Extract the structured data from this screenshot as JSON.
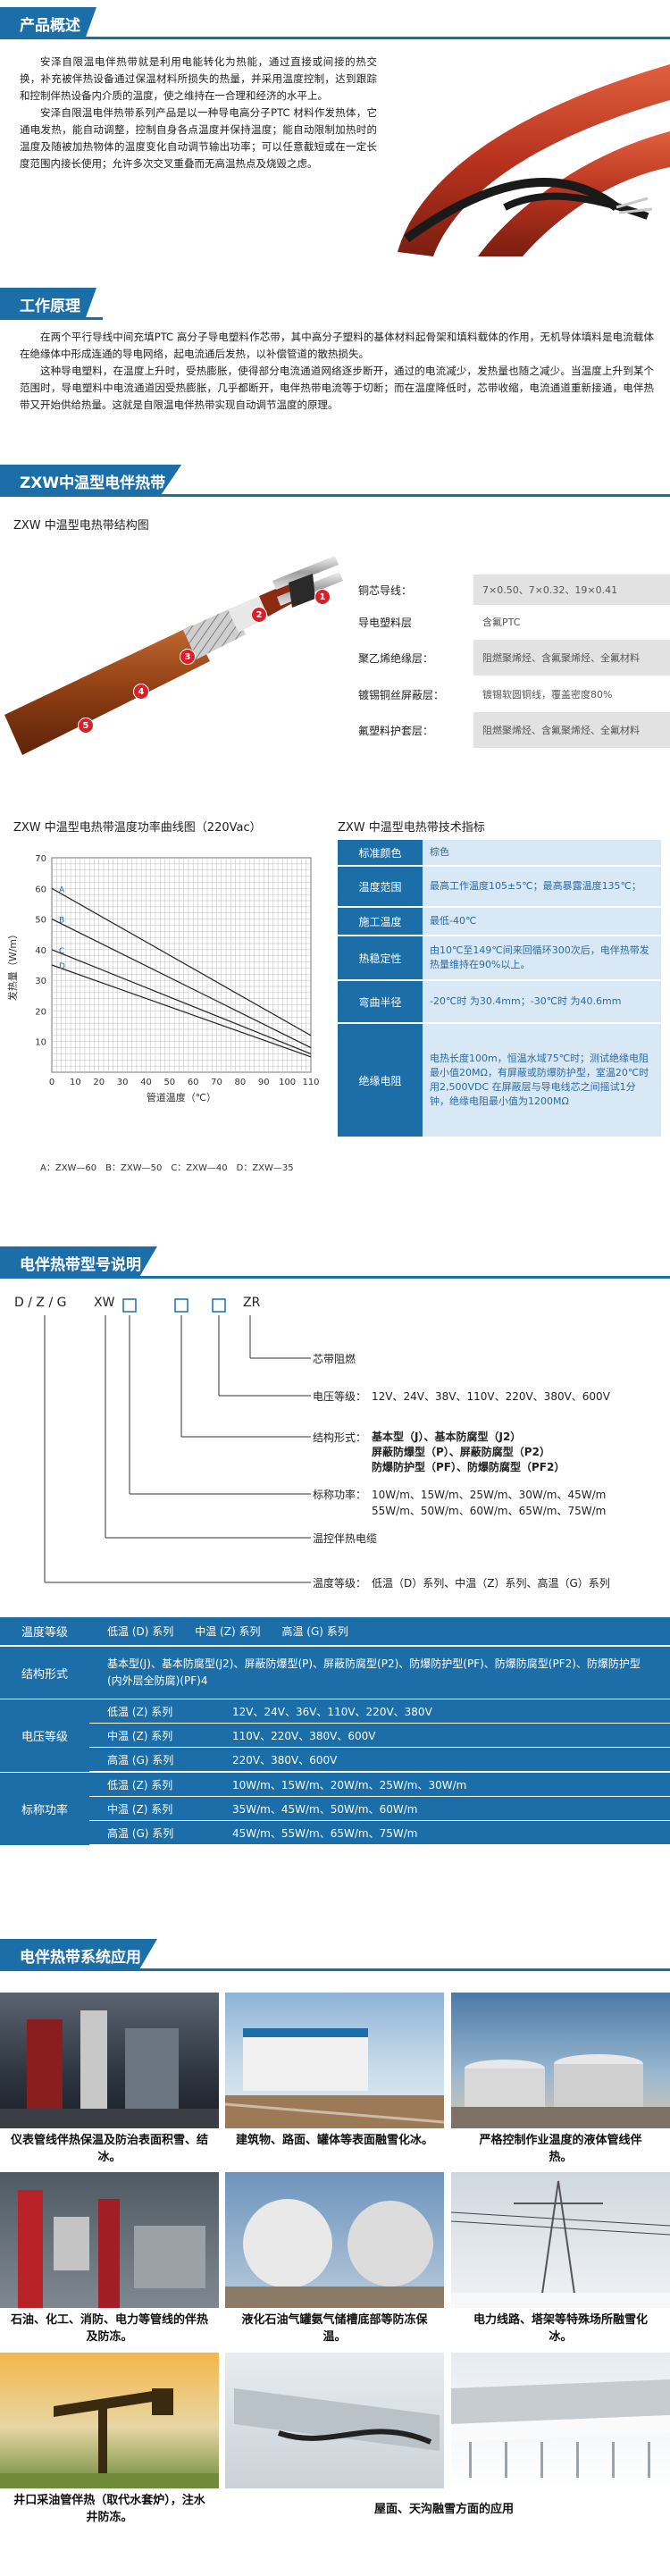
{
  "sections": {
    "overview": "产品概述",
    "principle": "工作原理",
    "zxw": "ZXW中温型电伴热带",
    "models": "电伴热带型号说明",
    "apps": "电伴热带系统应用"
  },
  "overview_text": [
    "安泽自限温电伴热带就是利用电能转化为热能，通过直接或间接的热交换，补充被伴热设备通过保温材料所损失的热量，并采用温度控制，达到跟踪和控制伴热设备内介质的温度，使之维持在一合理和经济的水平上。",
    "安泽自限温电伴热带系列产品是以一种导电高分子PTC 材料作发热体，它通电发热，能自动调整，控制自身各点温度并保持温度；能自动限制加热时的温度及随被加热物体的温度变化自动调节输出功率；可以任意截短或在一定长度范围内接长使用；允许多次交叉重叠而无高温热点及烧毁之虑。"
  ],
  "principle_text": [
    "在两个平行导线中间充填PTC 高分子导电塑料作芯带，其中高分子塑料的基体材料起骨架和填料载体的作用，无机导体填料是电流载体在绝缘体中形成连通的导电网络，起电流通后发热，以补偿管道的散热损失。",
    "这种导电塑料，在温度上升时，受热膨胀，使得部分电流通道网络逐步断开，通过的电流减少，发热量也随之减少。当温度上升到某个范围时，导电塑料中电流通道因受热膨胀，几乎都断开，电伴热带电流等于切断；而在温度降低时，芯带收缩，电流通道重新接通，电伴热带又开始供给热量。这就是自限温电伴热带实现自动调节温度的原理。"
  ],
  "structure": {
    "title": "ZXW 中温型电热带结构图",
    "rows": [
      {
        "no": "1",
        "k": "铜芯导线：",
        "v": "7×0.50、7×0.32、19×0.41"
      },
      {
        "no": "2",
        "k": "导电塑料层",
        "v": "含氟PTC"
      },
      {
        "no": "3",
        "k": "聚乙烯绝缘层：",
        "v": "阻燃聚烯烃、含氟聚烯烃、全氟材料"
      },
      {
        "no": "4",
        "k": "镀锡铜丝屏蔽层：",
        "v": "镀锡软圆铜线，覆盖密度80%"
      },
      {
        "no": "5",
        "k": "氟塑料护套层：",
        "v": "阻燃聚烯烃、含氟聚烯烃、全氟材料"
      }
    ]
  },
  "chart_title": "ZXW 中温型电热带温度功率曲线图（220Vac）",
  "chart_data": {
    "type": "line",
    "title": "ZXW 中温型电热带温度功率曲线图（220Vac）",
    "xlabel": "管道温度（℃）",
    "ylabel": "发热量（W/m）",
    "xlim": [
      0,
      110
    ],
    "ylim": [
      0,
      70
    ],
    "x_ticks": [
      0,
      10,
      20,
      30,
      40,
      50,
      60,
      70,
      80,
      90,
      100,
      110
    ],
    "y_ticks": [
      10,
      20,
      30,
      40,
      50,
      60,
      70
    ],
    "grid": true,
    "series": [
      {
        "name": "A",
        "x": [
          0,
          110
        ],
        "y": [
          60,
          12
        ]
      },
      {
        "name": "B",
        "x": [
          0,
          110
        ],
        "y": [
          50,
          8
        ]
      },
      {
        "name": "C",
        "x": [
          0,
          110
        ],
        "y": [
          40,
          6
        ]
      },
      {
        "name": "D",
        "x": [
          0,
          110
        ],
        "y": [
          35,
          5
        ]
      }
    ],
    "legend": "A：ZXW—60　B：ZXW—50　C：ZXW—40　D：ZXW—35"
  },
  "spec_title": "ZXW 中温型电热带技术指标",
  "spec": [
    {
      "k": "标准颜色",
      "v": "棕色"
    },
    {
      "k": "温度范围",
      "v": "最高工作温度105±5℃；最高暴露温度135℃；"
    },
    {
      "k": "施工温度",
      "v": "最低-40℃"
    },
    {
      "k": "热稳定性",
      "v": "由10℃至149℃间来回循环300次后，电伴热带发热量维持在90%以上。"
    },
    {
      "k": "弯曲半径",
      "v": "-20℃时 为30.4mm；-30℃时 为40.6mm"
    },
    {
      "k": "绝缘电阻",
      "v": "电热长度100m，恒温水域75℃时；测试绝缘电阻最小值20MΩ，有屏蔽或防爆防护型，室温20℃时用2,500VDC 在屏蔽层与导电线芯之间摇试1分钟，绝缘电阻最小值为1200MΩ"
    }
  ],
  "model": {
    "code_parts": [
      "D / Z / G",
      "XW",
      "□",
      "□",
      "□",
      "ZR"
    ],
    "items": [
      {
        "label": "芯带阻燃",
        "text": ""
      },
      {
        "label": "电压等级：",
        "text": "12V、24V、38V、110V、220V、380V、600V"
      },
      {
        "label": "结构形式：",
        "text": "基本型（J）、基本防腐型（J2）\n屏蔽防爆型（P）、屏蔽防腐型（P2）\n防爆防护型（PF）、防爆防腐型（PF2）"
      },
      {
        "label": "标称功率：",
        "text": "10W/m、15W/m、25W/m、30W/m、45W/m\n55W/m、50W/m、60W/m、65W/m、75W/m"
      },
      {
        "label": "温控伴热电缆",
        "text": ""
      },
      {
        "label": "温度等级：",
        "text": "低温（D）系列、中温（Z）系列、高温（G）系列"
      }
    ]
  },
  "model_table": {
    "temp_label": "温度等级",
    "temp_values": "低温 (D) 系列　　中温 (Z) 系列　　高温 (G) 系列",
    "struct_label": "结构形式",
    "struct_values": "基本型(J)、基本防腐型(J2)、屏蔽防爆型(P)、屏蔽防腐型(P2)、防爆防护型(PF)、防爆防腐型(PF2)、防爆防护型(内外层全防腐)(PF)4",
    "volt_label": "电压等级",
    "volt_rows": [
      {
        "k": "低温 (Z) 系列",
        "v": "12V、24V、36V、110V、220V、380V"
      },
      {
        "k": "中温 (Z) 系列",
        "v": "110V、220V、380V、600V"
      },
      {
        "k": "高温 (G) 系列",
        "v": "220V、380V、600V"
      }
    ],
    "power_label": "标称功率",
    "power_rows": [
      {
        "k": "低温 (Z) 系列",
        "v": "10W/m、15W/m、20W/m、25W/m、30W/m"
      },
      {
        "k": "中温 (Z) 系列",
        "v": "35W/m、45W/m、50W/m、60W/m"
      },
      {
        "k": "高温 (G) 系列",
        "v": "45W/m、55W/m、65W/m、75W/m"
      }
    ]
  },
  "apps": [
    {
      "caption": "仪表管线伴热保温及防治表面积雪、结冰。"
    },
    {
      "caption": "建筑物、路面、罐体等表面融雪化冰。"
    },
    {
      "caption": "严格控制作业温度的液体管线伴热。"
    },
    {
      "caption": "石油、化工、消防、电力等管线的伴热及防冻。"
    },
    {
      "caption": "液化石油气罐氨气储槽底部等防冻保温。"
    },
    {
      "caption": "电力线路、塔架等特殊场所融雪化冰。"
    },
    {
      "caption": "井口采油管伴热（取代水套炉），注水井防冻。"
    },
    {
      "caption": "屋面、天沟融雪方面的应用"
    }
  ],
  "colors": {
    "brand": "#1c6ea9",
    "cable": "#b23a22",
    "badge": "#d9202a"
  }
}
